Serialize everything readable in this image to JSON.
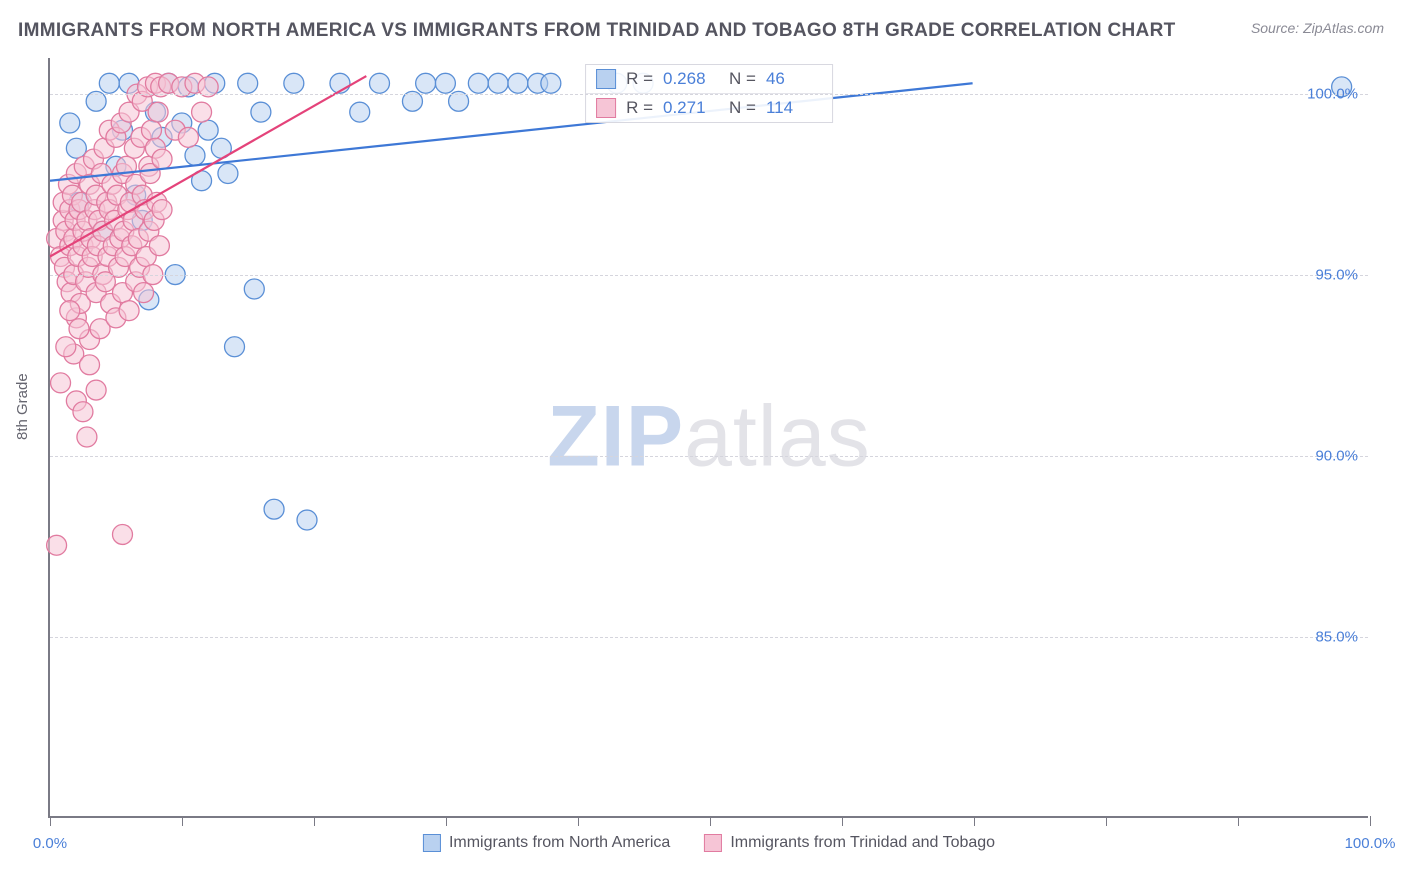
{
  "title": "IMMIGRANTS FROM NORTH AMERICA VS IMMIGRANTS FROM TRINIDAD AND TOBAGO 8TH GRADE CORRELATION CHART",
  "source": "Source: ZipAtlas.com",
  "y_axis_label": "8th Grade",
  "watermark_zip": "ZIP",
  "watermark_rest": "atlas",
  "chart": {
    "type": "scatter",
    "xlim": [
      0,
      100
    ],
    "ylim": [
      80,
      101
    ],
    "x_ticks": [
      0,
      10,
      20,
      30,
      40,
      50,
      60,
      70,
      80,
      90,
      100
    ],
    "x_tick_labels": {
      "0": "0.0%",
      "100": "100.0%"
    },
    "y_gridlines": [
      85,
      90,
      95,
      100
    ],
    "y_tick_labels": {
      "85": "85.0%",
      "90": "90.0%",
      "95": "95.0%",
      "100": "100.0%"
    },
    "grid_color": "#d5d5dd",
    "background_color": "#ffffff",
    "series": [
      {
        "id": "north_america",
        "label": "Immigrants from North America",
        "fill": "#b9d1f0",
        "stroke": "#5a8fd6",
        "marker_radius": 10,
        "fill_opacity": 0.55,
        "R": "0.268",
        "N": "46",
        "trend": {
          "x1": 0,
          "y1": 97.6,
          "x2": 70,
          "y2": 100.3,
          "stroke": "#3e78d6",
          "width": 2.2
        },
        "points": [
          [
            1.5,
            99.2
          ],
          [
            2.0,
            98.5
          ],
          [
            2.2,
            97.0
          ],
          [
            3.5,
            99.8
          ],
          [
            4.0,
            96.2
          ],
          [
            4.5,
            100.3
          ],
          [
            5.0,
            98.0
          ],
          [
            5.5,
            99.0
          ],
          [
            6.0,
            100.3
          ],
          [
            6.5,
            97.2
          ],
          [
            7.0,
            96.5
          ],
          [
            8.0,
            99.5
          ],
          [
            8.5,
            98.8
          ],
          [
            9.0,
            100.3
          ],
          [
            9.5,
            95.0
          ],
          [
            10.0,
            99.2
          ],
          [
            10.5,
            100.2
          ],
          [
            11.0,
            98.3
          ],
          [
            11.5,
            97.6
          ],
          [
            12.0,
            99.0
          ],
          [
            12.5,
            100.3
          ],
          [
            13.0,
            98.5
          ],
          [
            13.5,
            97.8
          ],
          [
            14.0,
            93.0
          ],
          [
            15.0,
            100.3
          ],
          [
            15.5,
            94.6
          ],
          [
            16.0,
            99.5
          ],
          [
            17.0,
            88.5
          ],
          [
            18.5,
            100.3
          ],
          [
            19.5,
            88.2
          ],
          [
            22.0,
            100.3
          ],
          [
            23.5,
            99.5
          ],
          [
            25.0,
            100.3
          ],
          [
            27.5,
            99.8
          ],
          [
            28.5,
            100.3
          ],
          [
            30.0,
            100.3
          ],
          [
            31.0,
            99.8
          ],
          [
            32.5,
            100.3
          ],
          [
            34.0,
            100.3
          ],
          [
            35.5,
            100.3
          ],
          [
            37.0,
            100.3
          ],
          [
            38.0,
            100.3
          ],
          [
            43.0,
            100.3
          ],
          [
            45.0,
            100.3
          ],
          [
            98.0,
            100.2
          ],
          [
            7.5,
            94.3
          ]
        ]
      },
      {
        "id": "trinidad_tobago",
        "label": "Immigrants from Trinidad and Tobago",
        "fill": "#f6c5d6",
        "stroke": "#e17ba0",
        "marker_radius": 10,
        "fill_opacity": 0.55,
        "R": "0.271",
        "N": "114",
        "trend": {
          "x1": 0,
          "y1": 95.5,
          "x2": 24,
          "y2": 100.5,
          "stroke": "#e4437a",
          "width": 2.2
        },
        "points": [
          [
            0.5,
            96.0
          ],
          [
            0.8,
            95.5
          ],
          [
            1.0,
            96.5
          ],
          [
            1.0,
            97.0
          ],
          [
            1.1,
            95.2
          ],
          [
            1.2,
            96.2
          ],
          [
            1.3,
            94.8
          ],
          [
            1.4,
            97.5
          ],
          [
            1.5,
            95.8
          ],
          [
            1.5,
            96.8
          ],
          [
            1.6,
            94.5
          ],
          [
            1.7,
            97.2
          ],
          [
            1.8,
            96.0
          ],
          [
            1.8,
            95.0
          ],
          [
            1.9,
            96.5
          ],
          [
            2.0,
            97.8
          ],
          [
            2.0,
            93.8
          ],
          [
            2.1,
            95.5
          ],
          [
            2.2,
            96.8
          ],
          [
            2.3,
            94.2
          ],
          [
            2.4,
            97.0
          ],
          [
            2.5,
            95.8
          ],
          [
            2.5,
            96.2
          ],
          [
            2.6,
            98.0
          ],
          [
            2.7,
            94.8
          ],
          [
            2.8,
            96.5
          ],
          [
            2.9,
            95.2
          ],
          [
            3.0,
            97.5
          ],
          [
            3.0,
            93.2
          ],
          [
            3.1,
            96.0
          ],
          [
            3.2,
            95.5
          ],
          [
            3.3,
            98.2
          ],
          [
            3.4,
            96.8
          ],
          [
            3.5,
            94.5
          ],
          [
            3.5,
            97.2
          ],
          [
            3.6,
            95.8
          ],
          [
            3.7,
            96.5
          ],
          [
            3.8,
            93.5
          ],
          [
            3.9,
            97.8
          ],
          [
            4.0,
            95.0
          ],
          [
            4.0,
            96.2
          ],
          [
            4.1,
            98.5
          ],
          [
            4.2,
            94.8
          ],
          [
            4.3,
            97.0
          ],
          [
            4.4,
            95.5
          ],
          [
            4.5,
            96.8
          ],
          [
            4.5,
            99.0
          ],
          [
            4.6,
            94.2
          ],
          [
            4.7,
            97.5
          ],
          [
            4.8,
            95.8
          ],
          [
            4.9,
            96.5
          ],
          [
            5.0,
            98.8
          ],
          [
            5.0,
            93.8
          ],
          [
            5.1,
            97.2
          ],
          [
            5.2,
            95.2
          ],
          [
            5.3,
            96.0
          ],
          [
            5.4,
            99.2
          ],
          [
            5.5,
            94.5
          ],
          [
            5.5,
            97.8
          ],
          [
            5.6,
            96.2
          ],
          [
            5.7,
            95.5
          ],
          [
            5.8,
            98.0
          ],
          [
            5.9,
            96.8
          ],
          [
            6.0,
            94.0
          ],
          [
            6.0,
            99.5
          ],
          [
            6.1,
            97.0
          ],
          [
            6.2,
            95.8
          ],
          [
            6.3,
            96.5
          ],
          [
            6.4,
            98.5
          ],
          [
            6.5,
            94.8
          ],
          [
            6.5,
            97.5
          ],
          [
            6.6,
            100.0
          ],
          [
            6.7,
            96.0
          ],
          [
            6.8,
            95.2
          ],
          [
            6.9,
            98.8
          ],
          [
            7.0,
            97.2
          ],
          [
            7.0,
            99.8
          ],
          [
            7.1,
            94.5
          ],
          [
            7.2,
            96.8
          ],
          [
            7.3,
            95.5
          ],
          [
            7.4,
            100.2
          ],
          [
            7.5,
            98.0
          ],
          [
            7.5,
            96.2
          ],
          [
            7.6,
            97.8
          ],
          [
            7.7,
            99.0
          ],
          [
            7.8,
            95.0
          ],
          [
            7.9,
            96.5
          ],
          [
            8.0,
            100.3
          ],
          [
            8.0,
            98.5
          ],
          [
            8.1,
            97.0
          ],
          [
            8.2,
            99.5
          ],
          [
            8.3,
            95.8
          ],
          [
            8.4,
            100.2
          ],
          [
            8.5,
            96.8
          ],
          [
            8.5,
            98.2
          ],
          [
            9.0,
            100.3
          ],
          [
            9.5,
            99.0
          ],
          [
            10.0,
            100.2
          ],
          [
            10.5,
            98.8
          ],
          [
            11.0,
            100.3
          ],
          [
            11.5,
            99.5
          ],
          [
            12.0,
            100.2
          ],
          [
            2.0,
            91.5
          ],
          [
            2.5,
            91.2
          ],
          [
            3.5,
            91.8
          ],
          [
            1.8,
            92.8
          ],
          [
            0.8,
            92.0
          ],
          [
            0.5,
            87.5
          ],
          [
            5.5,
            87.8
          ],
          [
            2.8,
            90.5
          ],
          [
            1.2,
            93.0
          ],
          [
            1.5,
            94.0
          ],
          [
            2.2,
            93.5
          ],
          [
            3.0,
            92.5
          ]
        ]
      }
    ]
  },
  "legend_labels": {
    "R_prefix": "R =",
    "N_prefix": "N ="
  }
}
